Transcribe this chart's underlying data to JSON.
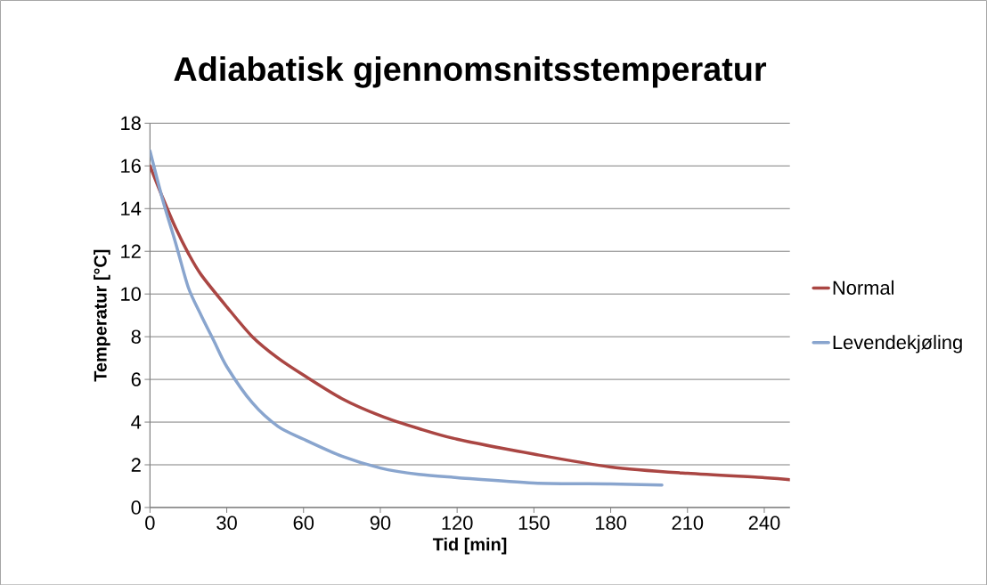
{
  "chart_data": {
    "type": "line",
    "title": "Adiabatisk gjennomsnitsstemperatur",
    "xlabel": "Tid [min]",
    "ylabel": "Temperatur [°C]",
    "series": [
      {
        "name": "Normal",
        "color": "#aa4643",
        "x": [
          0,
          5,
          10,
          15,
          20,
          30,
          40,
          50,
          60,
          75,
          90,
          105,
          120,
          150,
          180,
          210,
          240,
          250
        ],
        "values": [
          16.0,
          14.5,
          13.1,
          11.9,
          10.9,
          9.4,
          8.0,
          7.0,
          6.2,
          5.1,
          4.3,
          3.7,
          3.2,
          2.5,
          1.9,
          1.6,
          1.4,
          1.3
        ]
      },
      {
        "name": "Levendekjøling",
        "color": "#89a5ce",
        "x": [
          0,
          5,
          10,
          15,
          20,
          25,
          30,
          40,
          50,
          60,
          75,
          90,
          105,
          120,
          150,
          180,
          200
        ],
        "values": [
          16.7,
          14.4,
          12.4,
          10.3,
          9.0,
          7.8,
          6.6,
          4.9,
          3.8,
          3.2,
          2.4,
          1.85,
          1.55,
          1.4,
          1.15,
          1.1,
          1.05
        ]
      }
    ],
    "xlim": [
      0,
      250
    ],
    "xticks": [
      0,
      30,
      60,
      90,
      120,
      150,
      180,
      210,
      240
    ],
    "ylim": [
      0,
      18
    ],
    "yticks": [
      0,
      2,
      4,
      6,
      8,
      10,
      12,
      14,
      16,
      18
    ],
    "grid": "y",
    "legend": "right",
    "marker": "none",
    "line_style": "solid"
  }
}
